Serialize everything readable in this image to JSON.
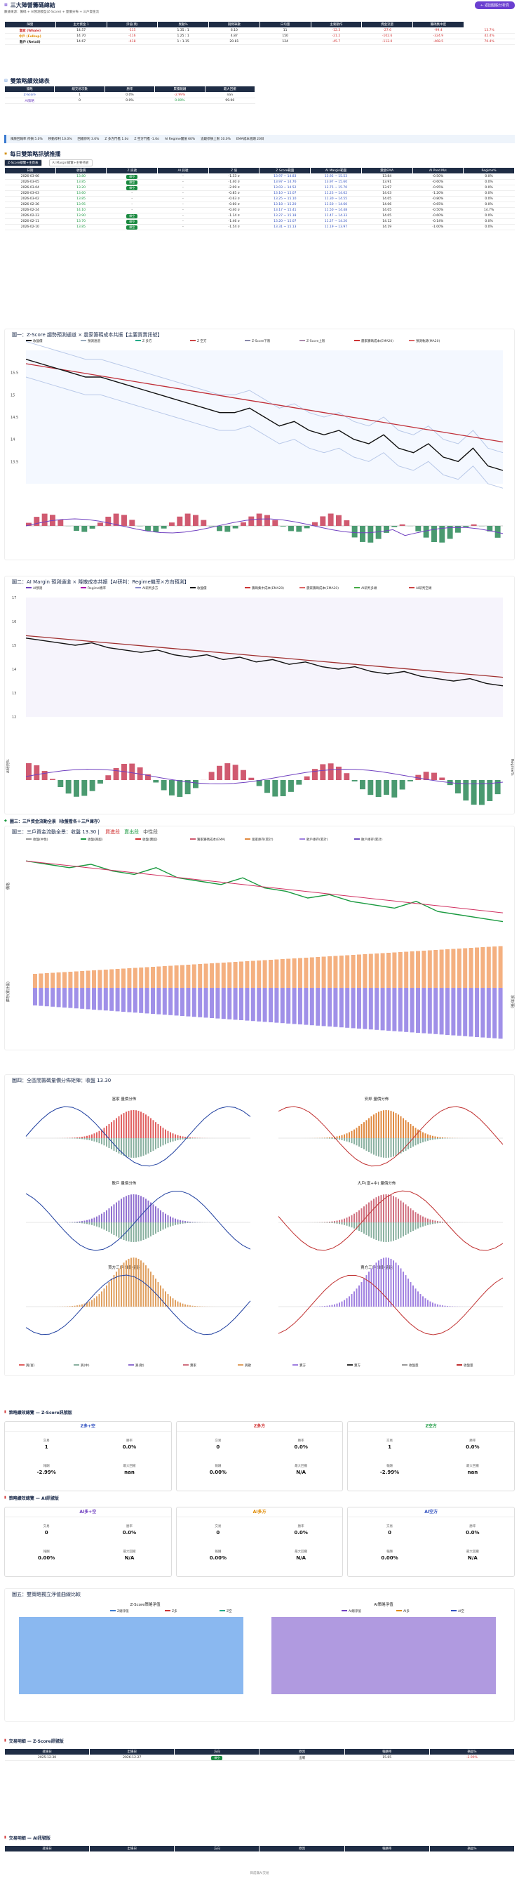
{
  "header": {
    "title": "三大陣營籌碼總結",
    "subtitle": "數據來源：籌碼 + AI預測模型(Z-Score) + 量價分佈 + 三戶資金流",
    "button": "← 返回個股分析頁"
  },
  "camps": {
    "cols": [
      "陣營",
      "主力資金 1",
      "淨值(萬)",
      "異動%",
      "期間筆數",
      "日均量",
      "主要動作",
      "資金流量",
      "籌碼集中度"
    ],
    "rows": [
      {
        "name": "富家 (Whale)",
        "v": [
          "14.57",
          "-115",
          "1.35 : 1",
          "6.10",
          "11",
          "-12.3",
          "-27.6",
          "-99.4",
          "13.7%"
        ],
        "c": "red"
      },
      {
        "name": "中戶 (Folkup)",
        "v": [
          "14.70",
          "-116",
          "1.25 : 1",
          "4.87",
          "150",
          "-21.2",
          "-102.6",
          "-324.9",
          "42.4%"
        ],
        "c": "org"
      },
      {
        "name": "散戶 (Retail)",
        "v": [
          "14.67",
          "-418",
          "1 : 1.15",
          "20.81",
          "124",
          "-45.7",
          "-112.0",
          "-468.5",
          "70.4%"
        ]
      }
    ]
  },
  "strat": {
    "title": "雙策略績效總表",
    "cols": [
      "策略",
      "總交易次數",
      "勝率",
      "累積報酬",
      "最大回撤"
    ],
    "rows": [
      [
        "Z-Score",
        "1",
        "0.0%",
        "-2.99%",
        "nan"
      ],
      [
        "AI策略",
        "0",
        "0.0%",
        "0.00%",
        "99.00"
      ]
    ]
  },
  "hlbar": {
    "items": [
      "風險回報率 停損 5.0%",
      "移動停利 10.0%",
      "回檔停利 3.0%",
      "Z 多方門檻 1.0σ",
      "Z 空方門檻 -1.0σ",
      "AI Regime閾值 60%",
      "追蹤停損上限 10.0%",
      "EMA成本週期 20日"
    ]
  },
  "hist": {
    "title": "每日雙策略訊號推播",
    "tabs": [
      "Z-Score總覽+主頁表",
      "AI Margin總覽+主要持倉"
    ],
    "cols": [
      "日期",
      "收盤價",
      "Z 訊號",
      "AI 訊號",
      "Z 值",
      "Z Score範圍",
      "AI Margin範圍",
      "震倉EMA",
      "AI Pred M/s",
      "Regime%"
    ],
    "rows": [
      [
        "2026-03-06",
        "13.80",
        "做空",
        "-",
        "-1.33 σ",
        "13.97 ~ 14.83",
        "13.92 ~ 15.53",
        "13.84",
        "-0.50%",
        "0.0%"
      ],
      [
        "2026-03-05",
        "13.85",
        "做空",
        "-",
        "-1.40 σ",
        "13.97 ~ 14.76",
        "13.97 ~ 15.60",
        "13.91",
        "-0.60%",
        "0.0%"
      ],
      [
        "2026-03-04",
        "13.20",
        "做空",
        "-",
        "-2.09 σ",
        "13.03 ~ 14.52",
        "13.75 ~ 15.70",
        "13.97",
        "-0.95%",
        "0.0%"
      ],
      [
        "2026-03-03",
        "13.60",
        "-",
        "-",
        "-0.85 σ",
        "13.10 ~ 15.07",
        "11.23 ~ 14.62",
        "14.03",
        "-1.20%",
        "0.0%"
      ],
      [
        "2026-03-02",
        "13.85",
        "-",
        "-",
        "-0.63 σ",
        "13.25 ~ 15.10",
        "11.30 ~ 14.55",
        "14.05",
        "-0.80%",
        "0.0%"
      ],
      [
        "2026-02-26",
        "13.95",
        "-",
        "-",
        "-0.60 σ",
        "13.18 ~ 15.20",
        "11.50 ~ 14.60",
        "14.06",
        "-0.65%",
        "0.0%"
      ],
      [
        "2026-02-24",
        "14.10",
        "-",
        "-",
        "-0.40 σ",
        "13.17 ~ 15.41",
        "11.50 ~ 14.48",
        "14.05",
        "-0.50%",
        "14.7%"
      ],
      [
        "2026-02-23",
        "13.90",
        "做空",
        "-",
        "-1.14 σ",
        "13.27 ~ 15.18",
        "11.47 ~ 14.33",
        "14.05",
        "-0.60%",
        "0.0%"
      ],
      [
        "2026-02-11",
        "13.70",
        "做空",
        "-",
        "-1.46 σ",
        "13.20 ~ 15.07",
        "11.27 ~ 14.20",
        "14.12",
        "-0.14%",
        "0.0%"
      ],
      [
        "2026-02-10",
        "13.85",
        "做空",
        "-",
        "-1.54 σ",
        "13.31 ~ 15.13",
        "11.19 ~ 13.97",
        "14.19",
        "-1.00%",
        "0.0%"
      ]
    ]
  },
  "chart1": {
    "title": "圖一：Z-Score 趨勢預測通道 × 震家籌碼成本共振【主要買賣訊號】",
    "legend": [
      "收盤價",
      "預測通道",
      "Z 多方",
      "Z 空方",
      "Z-Score下限",
      "Z-Score上限",
      "震家籌碼成本(EMA20)",
      "預測軌跡(MA20)"
    ]
  },
  "chart2": {
    "title": "圖二：AI Margin 預測通道 × 降散成本共振【AI研判：Regime機率×方向預測】",
    "legend": [
      "AI預測",
      "Regime機率",
      "AI研判多方",
      "收盤價",
      "籌碼集中成本(EMA20)",
      "震家籌碼成本(EMA20)",
      "AI研判多頭",
      "AI研判空頭"
    ],
    "yl2": "AI研判%",
    "yr2": "Regime%"
  },
  "sec3": {
    "title": "圖三：三戶資金流動全景（收盤看各＋三戶庫存）"
  },
  "chart3": {
    "title": "圖三：三戶資金流動全景：收盤 13.30 | ",
    "legend": [
      "收盤(中性)",
      "收盤(買超)",
      "收盤(賣超)",
      "籌家籌碼成本(EMA)",
      "富家庫存(累計)",
      "散戶庫存(累計)",
      "散戶庫存(累計)"
    ],
    "tags": [
      "買進段",
      "賣出段",
      "中性段"
    ],
    "yl1": "價格",
    "yl2": "庫存(累計張)",
    "yr2": "淨流(張)"
  },
  "chart4": {
    "title": "圖四：全區間籌碼量價分佈矩陣：收盤 13.30",
    "panels": [
      "富家 量價分佈",
      "安邦 量價分佈",
      "散戶 量價分佈",
      "大戶(富+中) 量價分佈",
      "買方三戶 堆疊量能",
      "賣方三戶 堆疊量能"
    ],
    "legend": [
      "買(富)",
      "買(中)",
      "買(散)",
      "賣家",
      "買散",
      "賣方",
      "賣方",
      "收盤量",
      "收盤量",
      "賣盤",
      "總盤",
      "散戶"
    ]
  },
  "zstrat": {
    "title": "策略績效總覽 — Z-Score訊號版",
    "cards": [
      {
        "h": "Z多+空",
        "c": "blu",
        "k": [
          [
            "交易",
            "1"
          ],
          [
            "勝率",
            "0.0%"
          ],
          [
            "報酬",
            "-2.99%"
          ],
          [
            "最大回撤",
            "nan"
          ]
        ]
      },
      {
        "h": "Z多方",
        "c": "red",
        "k": [
          [
            "交易",
            "0"
          ],
          [
            "勝率",
            "0.0%"
          ],
          [
            "報酬",
            "0.00%"
          ],
          [
            "最大回撤",
            "N/A"
          ]
        ]
      },
      {
        "h": "Z空方",
        "c": "grn",
        "k": [
          [
            "交易",
            "1"
          ],
          [
            "勝率",
            "0.0%"
          ],
          [
            "報酬",
            "-2.99%"
          ],
          [
            "最大回撤",
            "nan"
          ]
        ]
      }
    ]
  },
  "aistrat": {
    "title": "策略績效總覽 — AI訊號版",
    "cards": [
      {
        "h": "AI多+空",
        "c": "pur",
        "k": [
          [
            "交易",
            "0"
          ],
          [
            "勝率",
            "0.0%"
          ],
          [
            "報酬",
            "0.00%"
          ],
          [
            "最大回撤",
            "N/A"
          ]
        ]
      },
      {
        "h": "AI多方",
        "c": "org",
        "k": [
          [
            "交易",
            "0"
          ],
          [
            "勝率",
            "0.0%"
          ],
          [
            "報酬",
            "0.00%"
          ],
          [
            "最大回撤",
            "N/A"
          ]
        ]
      },
      {
        "h": "AI空方",
        "c": "blu",
        "k": [
          [
            "交易",
            "0"
          ],
          [
            "勝率",
            "0.0%"
          ],
          [
            "報酬",
            "0.00%"
          ],
          [
            "最大回撤",
            "N/A"
          ]
        ]
      }
    ]
  },
  "chart5": {
    "title": "圖五：雙策略獨立淨值曲線比較",
    "left": "Z-Score策略淨值",
    "right": "AI策略淨值",
    "legendL": [
      "Z總淨值",
      "Z多",
      "Z空"
    ],
    "legendR": [
      "AI總淨值",
      "AI多",
      "AI空"
    ]
  },
  "ztrade": {
    "title": "交易明細 — Z-Score訊號版",
    "cols": [
      "進場日",
      "出場日",
      "方向",
      "原因",
      "報酬率",
      "損益%"
    ],
    "rows": [
      [
        "2025-12-30",
        "2026-12-27",
        "做空",
        "出場",
        "15.65",
        "-2.99%"
      ]
    ]
  },
  "aitrade": {
    "title": "交易明細 — AI訊號版",
    "cols": [
      "進場日",
      "出場日",
      "方向",
      "原因",
      "報酬率",
      "損益%"
    ]
  },
  "footer": "目前無AI交易",
  "chart_data": [
    {
      "type": "line",
      "title": "圖一：Z-Score 趨勢預測通道 × 震家籌碼成本共振【主要買賣訊號】",
      "y": [
        15.8,
        15.7,
        15.6,
        15.5,
        15.4,
        15.4,
        15.3,
        15.2,
        15.1,
        15.0,
        14.9,
        14.8,
        14.7,
        14.6,
        14.6,
        14.7,
        14.5,
        14.3,
        14.4,
        14.2,
        14.1,
        14.2,
        14.0,
        13.9,
        14.1,
        13.8,
        13.7,
        13.9,
        13.6,
        13.5,
        13.8,
        13.4,
        13.3
      ],
      "ylim": [
        13,
        16
      ]
    },
    {
      "type": "line",
      "title": "圖二：AI Margin 預測通道 × 降散成本共振【AI研判：Regime機率×方向預測】",
      "y": [
        15.3,
        15.2,
        15.1,
        15.0,
        15.1,
        14.9,
        14.8,
        14.7,
        14.8,
        14.6,
        14.5,
        14.6,
        14.4,
        14.5,
        14.3,
        14.4,
        14.2,
        14.3,
        14.1,
        14.0,
        14.1,
        13.9,
        13.8,
        13.9,
        13.7,
        13.6,
        13.5,
        13.6,
        13.4,
        13.3
      ],
      "ylim": [
        12,
        17
      ]
    },
    {
      "type": "line",
      "title": "圖三：三戶資金流動全景：收盤 13.30",
      "y": [
        15.1,
        15.0,
        14.9,
        15.0,
        14.8,
        14.7,
        14.9,
        14.6,
        14.5,
        14.4,
        14.6,
        14.3,
        14.2,
        14.0,
        14.1,
        13.9,
        13.8,
        13.7,
        13.9,
        13.6,
        13.5,
        13.4,
        13.3
      ],
      "ylim": [
        13,
        15.5
      ]
    }
  ]
}
